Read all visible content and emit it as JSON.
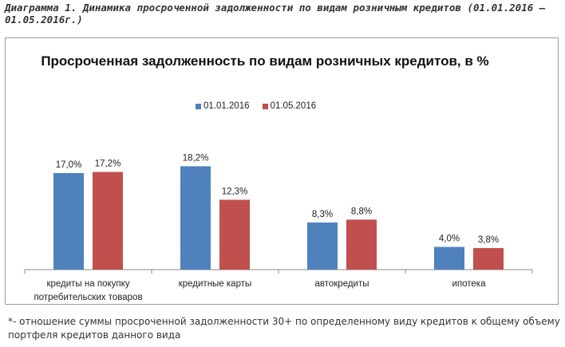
{
  "caption": "Диаграмма 1. Динамика просроченной задолженности по видам розничным кредитов (01.01.2016 – 01.05.2016г.)",
  "footnote": "*- отношение суммы просроченной задолженности 30+ по определенному виду кредитов к общему объему портфеля кредитов данного вида",
  "chart_data": {
    "type": "bar",
    "title": "Просроченная задолженность по видам розничных кредитов, в %",
    "categories": [
      "кредиты на покупку потребительских товаров",
      "кредитные карты",
      "автокредиты",
      "ипотека"
    ],
    "series": [
      {
        "name": "01.01.2016",
        "color": "#4f81bd",
        "values": [
          17.0,
          18.2,
          8.3,
          4.0
        ],
        "labels": [
          "17,0%",
          "18,2%",
          "8,3%",
          "4,0%"
        ]
      },
      {
        "name": "01.05.2016",
        "color": "#c0504d",
        "values": [
          17.2,
          12.3,
          8.8,
          3.8
        ],
        "labels": [
          "17,2%",
          "12,3%",
          "8,8%",
          "3,8%"
        ]
      }
    ],
    "ylim": [
      0,
      20
    ],
    "grid": false,
    "legend": "top-center"
  }
}
